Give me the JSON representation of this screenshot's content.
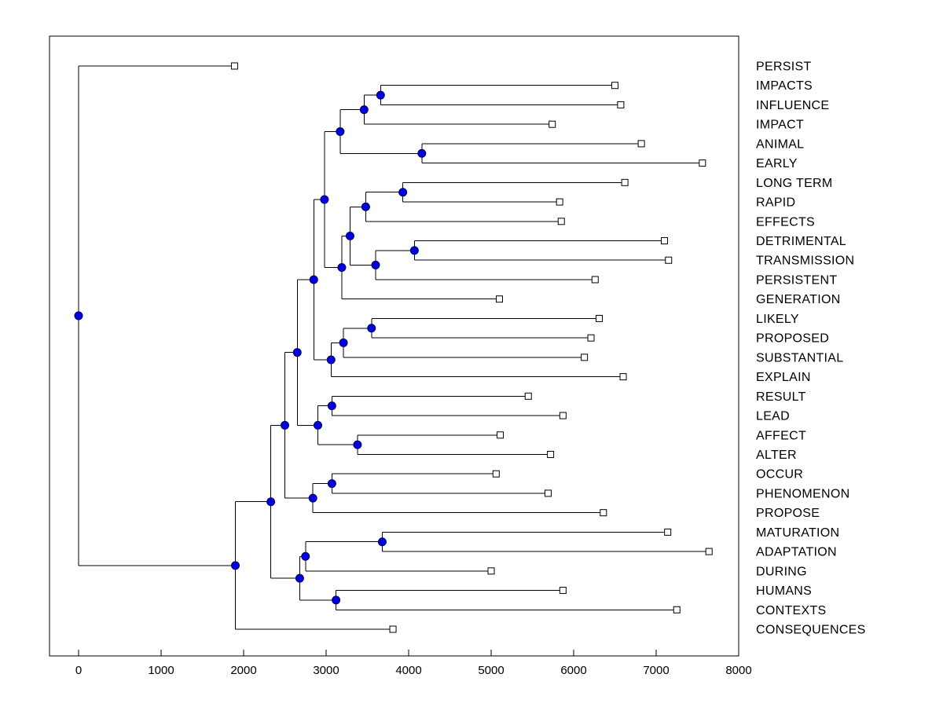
{
  "figure": {
    "background": "#ffffff",
    "plot_bg": "#ffffff",
    "axis_color": "#000000",
    "line_color": "#000000",
    "node_marker": {
      "shape": "filled-circle",
      "fill": "#0000dd",
      "stroke": "#000066",
      "radius": 5
    },
    "leaf_marker": {
      "shape": "open-square",
      "fill": "#ffffff",
      "stroke": "#000000",
      "size": 8
    }
  },
  "chart_data": {
    "type": "dendrogram",
    "orientation": "horizontal-root-left",
    "title": "",
    "xlabel": "",
    "ylabel": "",
    "grid": false,
    "legend": false,
    "x_ticks": [
      0,
      1000,
      2000,
      3000,
      4000,
      5000,
      6000,
      7000,
      8000
    ],
    "xlim": [
      -350,
      8000
    ],
    "categories": [
      "PERSIST",
      "IMPACTS",
      "INFLUENCE",
      "IMPACT",
      "ANIMAL",
      "EARLY",
      "LONG TERM",
      "RAPID",
      "EFFECTS",
      "DETRIMENTAL",
      "TRANSMISSION",
      "PERSISTENT",
      "GENERATION",
      "LIKELY",
      "PROPOSED",
      "SUBSTANTIAL",
      "EXPLAIN",
      "RESULT",
      "LEAD",
      "AFFECT",
      "ALTER",
      "OCCUR",
      "PHENOMENON",
      "PROPOSE",
      "MATURATION",
      "ADAPTATION",
      "DURING",
      "HUMANS",
      "CONTEXTS",
      "CONSEQUENCES"
    ],
    "tree": {
      "v": 0,
      "children": [
        {
          "label": "PERSIST",
          "v": 1890
        },
        {
          "v": 1900,
          "children": [
            {
              "v": 2330,
              "children": [
                {
                  "v": 2500,
                  "children": [
                    {
                      "v": 2650,
                      "children": [
                        {
                          "v": 2850,
                          "children": [
                            {
                              "v": 2980,
                              "children": [
                                {
                                  "v": 3170,
                                  "children": [
                                    {
                                      "v": 3460,
                                      "children": [
                                        {
                                          "v": 3660,
                                          "children": [
                                            {
                                              "label": "IMPACTS",
                                              "v": 6500
                                            },
                                            {
                                              "label": "INFLUENCE",
                                              "v": 6570
                                            }
                                          ]
                                        },
                                        {
                                          "label": "IMPACT",
                                          "v": 5740
                                        }
                                      ]
                                    },
                                    {
                                      "v": 4160,
                                      "children": [
                                        {
                                          "label": "ANIMAL",
                                          "v": 6820
                                        },
                                        {
                                          "label": "EARLY",
                                          "v": 7560
                                        }
                                      ]
                                    }
                                  ]
                                },
                                {
                                  "v": 3190,
                                  "children": [
                                    {
                                      "v": 3290,
                                      "children": [
                                        {
                                          "v": 3480,
                                          "children": [
                                            {
                                              "v": 3930,
                                              "children": [
                                                {
                                                  "label": "LONG TERM",
                                                  "v": 6620
                                                },
                                                {
                                                  "label": "RAPID",
                                                  "v": 5830
                                                }
                                              ]
                                            },
                                            {
                                              "label": "EFFECTS",
                                              "v": 5850
                                            }
                                          ]
                                        },
                                        {
                                          "v": 3600,
                                          "children": [
                                            {
                                              "v": 4070,
                                              "children": [
                                                {
                                                  "label": "DETRIMENTAL",
                                                  "v": 7100
                                                },
                                                {
                                                  "label": "TRANSMISSION",
                                                  "v": 7150
                                                }
                                              ]
                                            },
                                            {
                                              "label": "PERSISTENT",
                                              "v": 6260
                                            }
                                          ]
                                        }
                                      ]
                                    },
                                    {
                                      "label": "GENERATION",
                                      "v": 5100
                                    }
                                  ]
                                }
                              ]
                            },
                            {
                              "v": 3060,
                              "children": [
                                {
                                  "v": 3210,
                                  "children": [
                                    {
                                      "v": 3550,
                                      "children": [
                                        {
                                          "label": "LIKELY",
                                          "v": 6310
                                        },
                                        {
                                          "label": "PROPOSED",
                                          "v": 6210
                                        }
                                      ]
                                    },
                                    {
                                      "label": "SUBSTANTIAL",
                                      "v": 6130
                                    }
                                  ]
                                },
                                {
                                  "label": "EXPLAIN",
                                  "v": 6600
                                }
                              ]
                            }
                          ]
                        },
                        {
                          "v": 2900,
                          "children": [
                            {
                              "v": 3070,
                              "children": [
                                {
                                  "label": "RESULT",
                                  "v": 5450
                                },
                                {
                                  "label": "LEAD",
                                  "v": 5870
                                }
                              ]
                            },
                            {
                              "v": 3380,
                              "children": [
                                {
                                  "label": "AFFECT",
                                  "v": 5110
                                },
                                {
                                  "label": "ALTER",
                                  "v": 5720
                                }
                              ]
                            }
                          ]
                        }
                      ]
                    },
                    {
                      "v": 2840,
                      "children": [
                        {
                          "v": 3070,
                          "children": [
                            {
                              "label": "OCCUR",
                              "v": 5060
                            },
                            {
                              "label": "PHENOMENON",
                              "v": 5690
                            }
                          ]
                        },
                        {
                          "label": "PROPOSE",
                          "v": 6360
                        }
                      ]
                    }
                  ]
                },
                {
                  "v": 2680,
                  "children": [
                    {
                      "v": 2750,
                      "children": [
                        {
                          "v": 3680,
                          "children": [
                            {
                              "label": "MATURATION",
                              "v": 7140
                            },
                            {
                              "label": "ADAPTATION",
                              "v": 7640
                            }
                          ]
                        },
                        {
                          "label": "DURING",
                          "v": 5000
                        }
                      ]
                    },
                    {
                      "v": 3120,
                      "children": [
                        {
                          "label": "HUMANS",
                          "v": 5870
                        },
                        {
                          "label": "CONTEXTS",
                          "v": 7250
                        }
                      ]
                    }
                  ]
                }
              ]
            },
            {
              "label": "CONSEQUENCES",
              "v": 3810
            }
          ]
        }
      ]
    }
  }
}
